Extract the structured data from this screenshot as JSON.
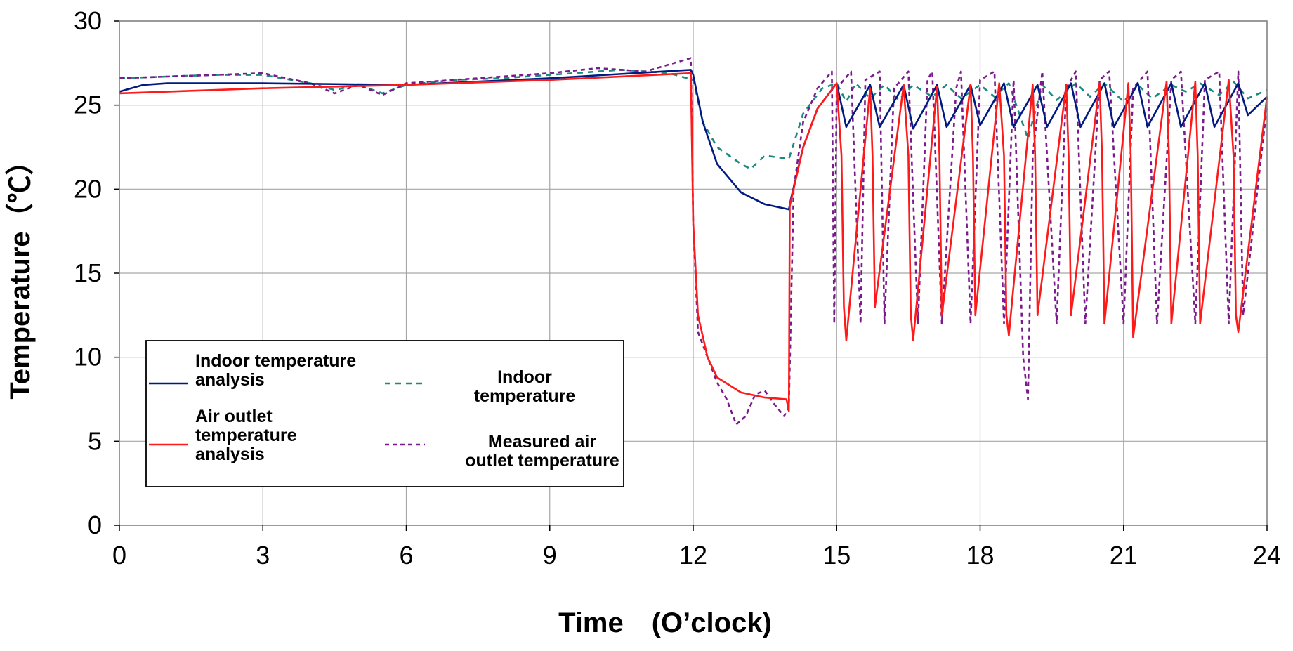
{
  "chart_data": {
    "type": "line",
    "xlabel": "Time　(O’clock)",
    "ylabel": "Temperature（℃）",
    "xlim": [
      0,
      24
    ],
    "ylim": [
      0,
      30
    ],
    "xticks": [
      0,
      3,
      6,
      9,
      12,
      15,
      18,
      21,
      24
    ],
    "yticks": [
      0,
      5,
      10,
      15,
      20,
      25,
      30
    ],
    "grid": true,
    "legend_position": "bottom-left",
    "series": [
      {
        "name": "Indoor temperature analysis",
        "legend_lines": [
          "Indoor temperature",
          "analysis"
        ],
        "color": "#001a80",
        "dash": "solid",
        "x": [
          0,
          0.5,
          1,
          3,
          6,
          9,
          11.95,
          12.0,
          12.2,
          12.5,
          13.0,
          13.5,
          14.0,
          14.05,
          14.3,
          14.6,
          15.0,
          15.2,
          15.7,
          15.9,
          16.4,
          16.6,
          17.1,
          17.3,
          17.8,
          18.0,
          18.5,
          18.7,
          19.2,
          19.4,
          19.9,
          20.1,
          20.6,
          20.8,
          21.3,
          21.5,
          22.0,
          22.2,
          22.7,
          22.9,
          23.4,
          23.6,
          24.0
        ],
        "y": [
          25.8,
          26.2,
          26.3,
          26.3,
          26.2,
          26.6,
          27.1,
          26.8,
          24.0,
          21.5,
          19.8,
          19.1,
          18.8,
          19.5,
          22.5,
          24.8,
          26.3,
          23.7,
          26.2,
          23.7,
          26.2,
          23.6,
          26.2,
          23.7,
          26.2,
          23.8,
          26.3,
          23.7,
          26.2,
          23.7,
          26.3,
          23.7,
          26.3,
          23.7,
          26.3,
          23.7,
          26.3,
          23.7,
          26.3,
          23.7,
          26.3,
          24.4,
          25.5
        ]
      },
      {
        "name": "Indoor temperature",
        "legend_lines": [
          "Indoor",
          "temperature"
        ],
        "color": "#1a8a80",
        "dash": "8,7",
        "x": [
          0,
          1,
          2,
          3,
          4,
          4.5,
          5,
          5.5,
          6,
          7,
          8,
          9,
          10,
          10.5,
          11.5,
          12.0,
          12.2,
          12.5,
          13.0,
          13.2,
          13.5,
          14.0,
          14.3,
          14.7,
          15.0,
          15.2,
          15.4,
          15.7,
          16.0,
          16.3,
          16.6,
          17.0,
          17.3,
          17.6,
          18.0,
          18.3,
          18.6,
          19.0,
          19.3,
          19.6,
          20.0,
          20.3,
          20.6,
          21.0,
          21.3,
          21.6,
          22.0,
          22.3,
          22.6,
          23.0,
          23.3,
          23.6,
          24.0
        ],
        "y": [
          26.6,
          26.7,
          26.8,
          26.8,
          26.3,
          25.9,
          26.2,
          25.7,
          26.2,
          26.5,
          26.6,
          26.8,
          27.0,
          27.1,
          26.9,
          26.5,
          24.0,
          22.5,
          21.5,
          21.2,
          22.0,
          21.8,
          24.5,
          26.0,
          26.3,
          25.2,
          26.3,
          25.4,
          26.2,
          25.3,
          26.2,
          25.5,
          26.2,
          25.4,
          26.2,
          25.5,
          26.3,
          23.0,
          26.2,
          25.3,
          26.3,
          25.5,
          26.3,
          25.2,
          26.2,
          25.4,
          26.2,
          25.8,
          26.3,
          25.6,
          26.4,
          25.4,
          25.9
        ]
      },
      {
        "name": "Air outlet temperature analysis",
        "legend_lines": [
          "Air outlet",
          "temperature",
          "analysis"
        ],
        "color": "#ff1a1a",
        "dash": "solid",
        "x": [
          0,
          3,
          6,
          9,
          11.95,
          12.0,
          12.1,
          12.3,
          12.5,
          13.0,
          13.5,
          13.95,
          14.0,
          14.02,
          14.3,
          14.6,
          15.0,
          15.1,
          15.15,
          15.2,
          15.7,
          15.75,
          15.8,
          16.4,
          16.5,
          16.55,
          16.6,
          17.1,
          17.15,
          17.2,
          17.8,
          17.85,
          17.9,
          18.4,
          18.5,
          18.55,
          18.6,
          19.1,
          19.15,
          19.2,
          19.8,
          19.85,
          19.9,
          20.5,
          20.55,
          20.6,
          21.1,
          21.15,
          21.2,
          21.9,
          21.95,
          22.0,
          22.5,
          22.55,
          22.6,
          23.2,
          23.3,
          23.35,
          23.4,
          24.0
        ],
        "y": [
          25.7,
          26.0,
          26.2,
          26.5,
          26.9,
          18.0,
          12.5,
          10.0,
          8.8,
          7.9,
          7.6,
          7.5,
          6.8,
          19.0,
          22.5,
          24.8,
          26.3,
          22.0,
          13.0,
          11.0,
          26.0,
          22.0,
          13.0,
          26.2,
          22.0,
          12.5,
          11.0,
          26.1,
          22.0,
          12.5,
          26.2,
          22.0,
          12.5,
          26.3,
          22.0,
          12.5,
          11.3,
          26.2,
          22.0,
          12.5,
          26.2,
          22.0,
          12.5,
          26.3,
          22.0,
          12.0,
          26.3,
          22.0,
          11.2,
          26.4,
          22.0,
          12.0,
          26.4,
          22.0,
          12.0,
          26.5,
          22.0,
          12.5,
          11.5,
          25.5
        ]
      },
      {
        "name": "Measured air outlet temperature",
        "legend_lines": [
          "Measured air",
          "outlet temperature"
        ],
        "color": "#7a1a8c",
        "dash": "6,5",
        "x": [
          0,
          1,
          2,
          3,
          4,
          4.5,
          5,
          5.5,
          6,
          7,
          8,
          9,
          10,
          11,
          11.95,
          12.0,
          12.1,
          12.3,
          12.5,
          12.7,
          12.9,
          13.1,
          13.3,
          13.5,
          13.7,
          13.9,
          14.0,
          14.1,
          14.3,
          14.6,
          14.9,
          14.95,
          15.0,
          15.3,
          15.5,
          15.6,
          15.9,
          16.0,
          16.2,
          16.5,
          16.7,
          16.9,
          17.0,
          17.2,
          17.5,
          17.6,
          17.8,
          18.0,
          18.3,
          18.5,
          18.7,
          18.9,
          19.0,
          19.1,
          19.3,
          19.6,
          19.8,
          20.0,
          20.2,
          20.5,
          20.7,
          21.0,
          21.2,
          21.5,
          21.7,
          22.0,
          22.2,
          22.5,
          22.7,
          23.0,
          23.2,
          23.4,
          23.5,
          24.0
        ],
        "y": [
          26.6,
          26.7,
          26.8,
          26.9,
          26.3,
          25.7,
          26.2,
          25.6,
          26.3,
          26.5,
          26.7,
          26.9,
          27.2,
          27.0,
          27.8,
          18.0,
          11.5,
          10.0,
          8.5,
          7.5,
          6.0,
          6.5,
          7.8,
          8.0,
          7.2,
          6.5,
          7.0,
          20.0,
          24.0,
          26.0,
          27.0,
          12.0,
          26.0,
          27.0,
          12.0,
          26.5,
          27.0,
          12.0,
          26.0,
          27.0,
          12.0,
          26.5,
          27.0,
          12.0,
          26.0,
          27.0,
          12.0,
          26.5,
          27.0,
          12.0,
          26.5,
          10.0,
          7.5,
          22.0,
          27.0,
          12.0,
          26.0,
          27.0,
          12.0,
          26.5,
          27.0,
          12.0,
          26.0,
          27.0,
          12.0,
          26.5,
          27.0,
          12.0,
          26.5,
          27.0,
          12.0,
          27.0,
          12.5,
          25.0
        ]
      }
    ]
  }
}
